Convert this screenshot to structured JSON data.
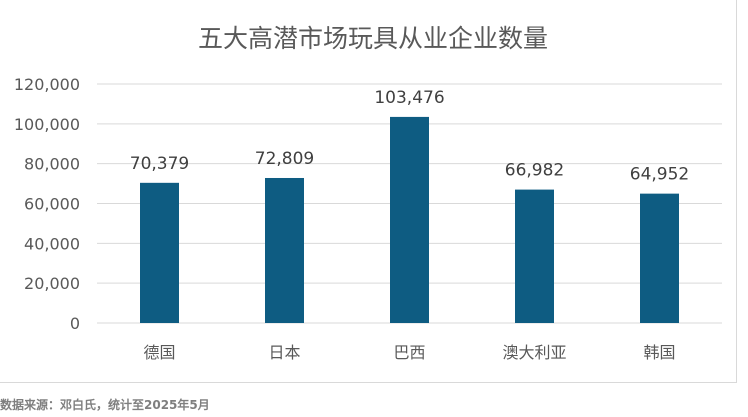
{
  "chart_data": {
    "type": "bar",
    "title": "五大高潜市场玩具从业企业数量",
    "categories": [
      "德国",
      "日本",
      "巴西",
      "澳大利亚",
      "韩国"
    ],
    "values": [
      70379,
      72809,
      103476,
      66982,
      64952
    ],
    "data_labels": [
      "70,379",
      "72,809",
      "103,476",
      "66,982",
      "64,952"
    ],
    "y_ticks": [
      "0",
      "20,000",
      "40,000",
      "60,000",
      "80,000",
      "100,000",
      "120,000"
    ],
    "ylim": [
      0,
      120000
    ],
    "xlabel": "",
    "ylabel": "",
    "grid": true,
    "bar_color": "#0e5c82",
    "grid_color": "#d9d9d9",
    "text_color": "#595959"
  },
  "footer": {
    "source": "数据来源：邓白氏，统计至2025年5月"
  }
}
